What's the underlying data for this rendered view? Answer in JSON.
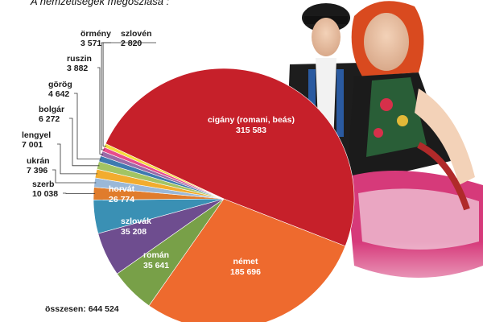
{
  "header": {
    "title": "A nemzetiségek megoszlása :"
  },
  "total": {
    "text": "összesen: 644 524"
  },
  "chart_data": {
    "type": "pie",
    "title": "A nemzetiségek megoszlása :",
    "slices": [
      {
        "label": "cigány (romani, beás)",
        "value_text": "315 583",
        "value": 315583,
        "color": "#c6202a",
        "label_mode": "inside"
      },
      {
        "label": "német",
        "value_text": "185 696",
        "value": 185696,
        "color": "#ee6a2e",
        "label_mode": "inside"
      },
      {
        "label": "román",
        "value_text": "35 641",
        "value": 35641,
        "color": "#78a048",
        "label_mode": "inside"
      },
      {
        "label": "szlovák",
        "value_text": "35 208",
        "value": 35208,
        "color": "#6e4d8f",
        "label_mode": "inside"
      },
      {
        "label": "horvát",
        "value_text": "26 774",
        "value": 26774,
        "color": "#3a90b4",
        "label_mode": "inside"
      },
      {
        "label": "szerb",
        "value_text": "10 038",
        "value": 10038,
        "color": "#e07c2c",
        "label_mode": "outside"
      },
      {
        "label": "ukrán",
        "value_text": "7 396",
        "value": 7396,
        "color": "#9ab8d8",
        "label_mode": "outside"
      },
      {
        "label": "lengyel",
        "value_text": "7 001",
        "value": 7001,
        "color": "#f2ac2e",
        "label_mode": "outside"
      },
      {
        "label": "bolgár",
        "value_text": "6 272",
        "value": 6272,
        "color": "#a3c463",
        "label_mode": "outside"
      },
      {
        "label": "görög",
        "value_text": "4 642",
        "value": 4642,
        "color": "#3d7ab0",
        "label_mode": "outside"
      },
      {
        "label": "ruszin",
        "value_text": "3 882",
        "value": 3882,
        "color": "#9a6aa8",
        "label_mode": "outside"
      },
      {
        "label": "örmény",
        "value_text": "3 571",
        "value": 3571,
        "color": "#e84c8c",
        "label_mode": "outside"
      },
      {
        "label": "szlovén",
        "value_text": "2 820",
        "value": 2820,
        "color": "#f6dc3c",
        "label_mode": "outside"
      }
    ]
  }
}
